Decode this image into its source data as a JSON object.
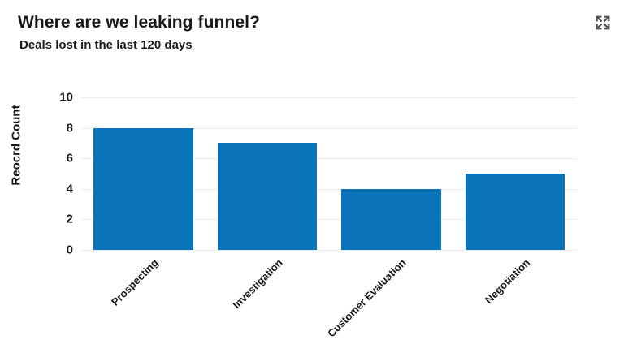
{
  "header": {
    "title": "Where are we leaking funnel?",
    "subtitle": "Deals lost in the last 120 days",
    "expand_icon": "expand-icon"
  },
  "chart_data": {
    "type": "bar",
    "title": "Where are we leaking funnel?",
    "subtitle": "Deals lost in the last 120 days",
    "categories": [
      "Prospecting",
      "Investigation",
      "Customer Evaluation",
      "Negotiation"
    ],
    "values": [
      8,
      7,
      4,
      5
    ],
    "xlabel": "",
    "ylabel": "Reocrd Count",
    "ylim": [
      0,
      10
    ],
    "yticks": [
      0,
      2,
      4,
      6,
      8,
      10
    ],
    "grid": true,
    "legend": "none",
    "bar_color": "#0a74ba",
    "gridline_color": "#ececec",
    "text_color": "#16181d"
  }
}
